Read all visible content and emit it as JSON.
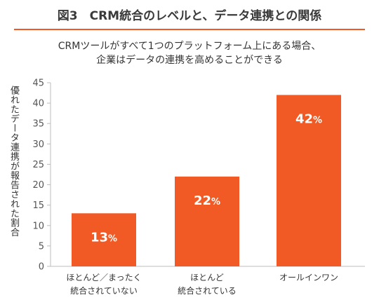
{
  "figure": {
    "title": "図3　CRM統合のレベルと、データ連携との関係"
  },
  "chart_data": {
    "type": "bar",
    "title_lines": [
      "CRMツールがすべて1つのプラットフォーム上にある場合、",
      "企業はデータの連携を高めることができる"
    ],
    "ylabel": "優れたデータ連携が報告された割合",
    "xlabel": "",
    "categories": [
      [
        "ほとんど／まったく",
        "統合されていない"
      ],
      [
        "ほとんど",
        "統合されている"
      ],
      [
        "オールインワン"
      ]
    ],
    "values": [
      13,
      22,
      42
    ],
    "value_suffix": "%",
    "ylim": [
      0,
      45
    ],
    "yticks": [
      0,
      5,
      10,
      15,
      20,
      25,
      30,
      35,
      40,
      45
    ],
    "grid": false,
    "bar_color": "#f15a24",
    "axis_color": "#bdbdbd"
  }
}
